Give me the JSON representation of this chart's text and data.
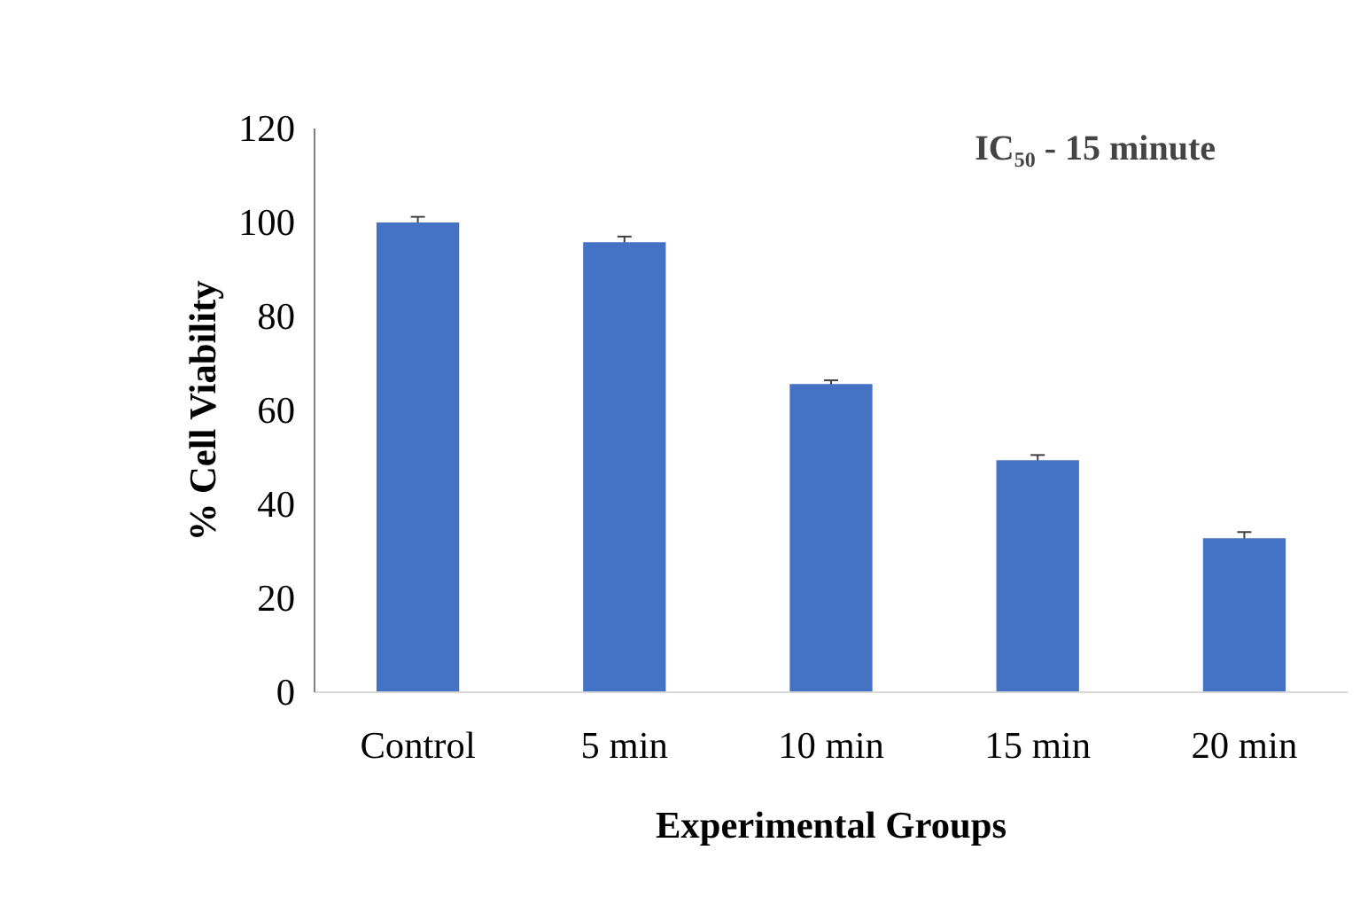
{
  "chart_data": {
    "type": "bar",
    "xlabel": "Experimental Groups",
    "ylabel": "% Cell Viability",
    "annotations": [
      "IC₅₀  - 15 minute"
    ],
    "categories": [
      "Control",
      "5 min",
      "10 min",
      "15 min",
      "20 min"
    ],
    "values": [
      100,
      95.8,
      65.6,
      49.4,
      32.8
    ],
    "errors": [
      1.2,
      1.2,
      0.8,
      1.1,
      1.3
    ],
    "color": "#4472c4",
    "ylim": [
      0,
      120
    ],
    "yticks": [
      0,
      20,
      40,
      60,
      80,
      100,
      120
    ],
    "grid": false
  }
}
